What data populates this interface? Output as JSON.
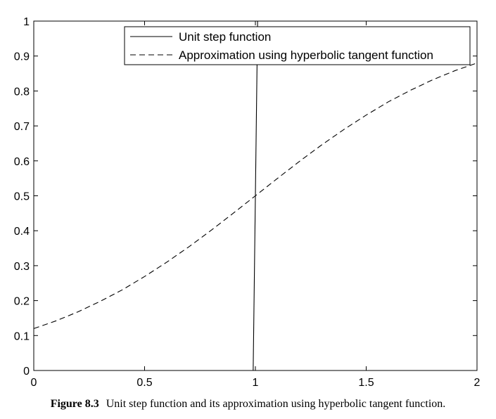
{
  "chart_data": {
    "type": "line",
    "xlim": [
      0,
      2
    ],
    "ylim": [
      0,
      1
    ],
    "x_ticks": [
      "0",
      "0.5",
      "1",
      "1.5",
      "2"
    ],
    "y_ticks": [
      "0",
      "0.1",
      "0.2",
      "0.3",
      "0.4",
      "0.5",
      "0.6",
      "0.7",
      "0.8",
      "0.9",
      "1"
    ],
    "grid": false,
    "legend_position": "top-right",
    "series": [
      {
        "name": "Unit step function",
        "style": "solid",
        "x": [
          0.99,
          1.01
        ],
        "y": [
          0,
          1
        ]
      },
      {
        "name": "Approximation using hyperbolic tangent function",
        "style": "dashed",
        "x": [
          0,
          0.1,
          0.2,
          0.3,
          0.4,
          0.5,
          0.6,
          0.7,
          0.8,
          0.9,
          1.0,
          1.1,
          1.2,
          1.3,
          1.4,
          1.5,
          1.6,
          1.7,
          1.8,
          1.9,
          2.0
        ],
        "y": [
          0.12,
          0.142,
          0.168,
          0.198,
          0.231,
          0.269,
          0.31,
          0.354,
          0.401,
          0.45,
          0.5,
          0.55,
          0.599,
          0.646,
          0.69,
          0.731,
          0.769,
          0.802,
          0.832,
          0.858,
          0.88
        ]
      }
    ]
  },
  "caption": {
    "number": "Figure 8.3",
    "text": "Unit step function and its approximation using hyperbolic tangent function."
  }
}
